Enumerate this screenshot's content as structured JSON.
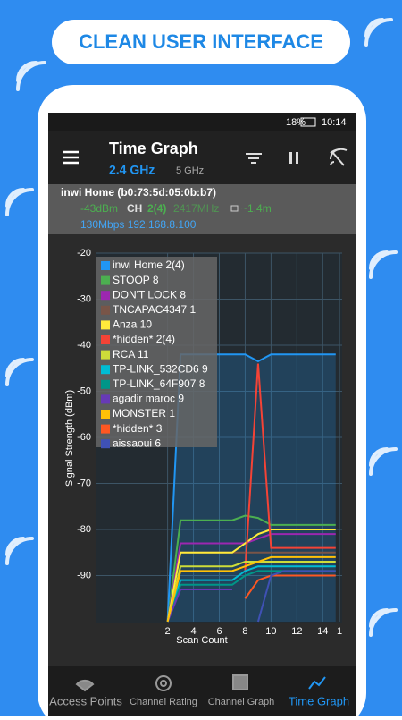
{
  "banner": "CLEAN USER INTERFACE",
  "status": {
    "battery": "18%",
    "time": "10:14"
  },
  "app_bar": {
    "title": "Time Graph",
    "tabs": [
      "2.4 GHz",
      "5 GHz"
    ]
  },
  "info": {
    "ssid": "inwi Home (b0:73:5d:05:0b:b7)",
    "signal": "-43dBm",
    "ch_label": "CH",
    "channel": "2(4)",
    "freq": "2417MHz",
    "distance": "~1.4m",
    "link": "130Mbps 192.168.8.100"
  },
  "chart_data": {
    "type": "line",
    "xlabel": "Scan Count",
    "ylabel": "Signal Strength (dBm)",
    "x": [
      2,
      3,
      4,
      5,
      6,
      7,
      8,
      9,
      10,
      11,
      12,
      13,
      14,
      15
    ],
    "xlim": [
      -3.5,
      15.5
    ],
    "ylim": [
      -100,
      -20
    ],
    "xticks": [
      2,
      4,
      6,
      8,
      10,
      12,
      14,
      {
        "value": 15.3,
        "label": "1"
      }
    ],
    "yticks": [
      -20,
      -30,
      -40,
      -50,
      -60,
      -70,
      -80,
      -90
    ],
    "grid": true,
    "series": [
      {
        "name": "inwi Home 2(4)",
        "color": "#2196f3",
        "values": [
          -100,
          -42,
          -42,
          -42,
          -42,
          -42,
          -42,
          -43.5,
          -42,
          -42,
          -42,
          -42,
          -42,
          -42
        ]
      },
      {
        "name": "STOOP 8",
        "color": "#4caf50",
        "values": [
          -100,
          -78,
          -78,
          -78,
          -78,
          -78,
          -77,
          -77.5,
          -79,
          -79,
          -79,
          -79,
          -79,
          -79
        ]
      },
      {
        "name": "DON'T LOCK 8",
        "color": "#9c27b0",
        "values": [
          -100,
          -83,
          -83,
          -83,
          -83,
          -83,
          -83,
          -82,
          -81,
          -81,
          -81,
          -81,
          -81,
          -81
        ]
      },
      {
        "name": "TNCAPAC4347 1",
        "color": "#795548",
        "values": [
          -100,
          -85,
          -85,
          -85,
          -85,
          -85,
          -85,
          -85,
          -85,
          -85,
          -85,
          -85,
          -85,
          -85
        ]
      },
      {
        "name": "Anza 10",
        "color": "#ffeb3b",
        "values": [
          -100,
          -85,
          -85,
          -85,
          -85,
          -85,
          -83,
          -81,
          -80,
          -80,
          -80,
          -80,
          -80,
          -80
        ]
      },
      {
        "name": "*hidden* 2(4)",
        "color": "#f44336",
        "values": [
          null,
          null,
          null,
          null,
          null,
          null,
          -89,
          -44,
          -84,
          -84,
          -84,
          -84,
          -84,
          -84
        ]
      },
      {
        "name": "RCA 11",
        "color": "#cddc39",
        "values": [
          -100,
          -88,
          -88,
          -88,
          -88,
          -88,
          -87,
          -87,
          -87,
          -87,
          -87,
          -87,
          -87,
          -87
        ]
      },
      {
        "name": "TP-LINK_532CD6 9",
        "color": "#00bcd4",
        "values": [
          -100,
          -91,
          -91,
          -91,
          -91,
          -91,
          -89,
          -88,
          -88,
          -88,
          -88,
          -88,
          -88,
          -88
        ]
      },
      {
        "name": "TP-LINK_64F907 8",
        "color": "#009688",
        "values": [
          -100,
          -92,
          -92,
          -92,
          -92,
          -92,
          -90,
          -89,
          -89,
          -89,
          -89,
          -89,
          -89,
          -89
        ]
      },
      {
        "name": "agadir maroc 9",
        "color": "#673ab7",
        "values": [
          -100,
          -93,
          -93,
          -93,
          -93,
          -93,
          null,
          null,
          null,
          null,
          null,
          null,
          null,
          null
        ]
      },
      {
        "name": "MONSTER 1",
        "color": "#ffc107",
        "values": [
          -100,
          -89,
          -89,
          -89,
          -89,
          -89,
          -88,
          -87,
          -86,
          -86,
          -86,
          -86,
          -86,
          -86
        ]
      },
      {
        "name": "*hidden* 3",
        "color": "#ff5722",
        "values": [
          null,
          null,
          null,
          null,
          null,
          null,
          -95,
          -91,
          -90,
          -90,
          -90,
          -90,
          -90,
          -90
        ]
      },
      {
        "name": "aissaoui 6",
        "color": "#3f51b5",
        "values": [
          null,
          null,
          null,
          null,
          null,
          null,
          null,
          -100,
          -90,
          -89,
          -89,
          -89,
          -89,
          -89
        ]
      }
    ]
  },
  "nav": [
    "Access Points",
    "Channel Rating",
    "Channel Graph",
    "Time Graph"
  ]
}
